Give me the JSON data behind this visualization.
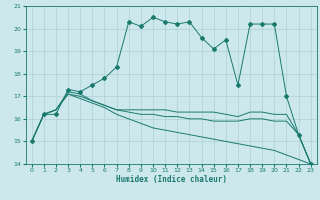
{
  "title": "",
  "xlabel": "Humidex (Indice chaleur)",
  "bg_color": "#cce8ec",
  "line_color": "#1a7a6e",
  "grid_color": "#b0d0d4",
  "xlim": [
    -0.5,
    23.5
  ],
  "ylim": [
    14,
    21
  ],
  "yticks": [
    14,
    15,
    16,
    17,
    18,
    19,
    20,
    21
  ],
  "xticks": [
    0,
    1,
    2,
    3,
    4,
    5,
    6,
    7,
    8,
    9,
    10,
    11,
    12,
    13,
    14,
    15,
    16,
    17,
    18,
    19,
    20,
    21,
    22,
    23
  ],
  "series": [
    [
      15.0,
      16.2,
      16.2,
      17.3,
      17.2,
      17.5,
      17.8,
      18.3,
      20.3,
      20.1,
      20.5,
      20.3,
      20.2,
      20.3,
      19.6,
      19.1,
      19.5,
      17.5,
      20.2,
      20.2,
      20.2,
      17.0,
      15.3,
      14.0
    ],
    [
      15.0,
      16.2,
      16.4,
      17.2,
      17.1,
      16.8,
      16.6,
      16.4,
      16.4,
      16.4,
      16.4,
      16.4,
      16.3,
      16.3,
      16.3,
      16.3,
      16.2,
      16.1,
      16.3,
      16.3,
      16.2,
      16.2,
      15.3,
      14.0
    ],
    [
      15.0,
      16.2,
      16.4,
      17.1,
      17.0,
      16.8,
      16.6,
      16.4,
      16.3,
      16.2,
      16.2,
      16.1,
      16.1,
      16.0,
      16.0,
      15.9,
      15.9,
      15.9,
      16.0,
      16.0,
      15.9,
      15.9,
      15.3,
      14.0
    ],
    [
      15.0,
      16.2,
      16.4,
      17.1,
      16.9,
      16.7,
      16.5,
      16.2,
      16.0,
      15.8,
      15.6,
      15.5,
      15.4,
      15.3,
      15.2,
      15.1,
      15.0,
      14.9,
      14.8,
      14.7,
      14.6,
      14.4,
      14.2,
      14.0
    ]
  ]
}
